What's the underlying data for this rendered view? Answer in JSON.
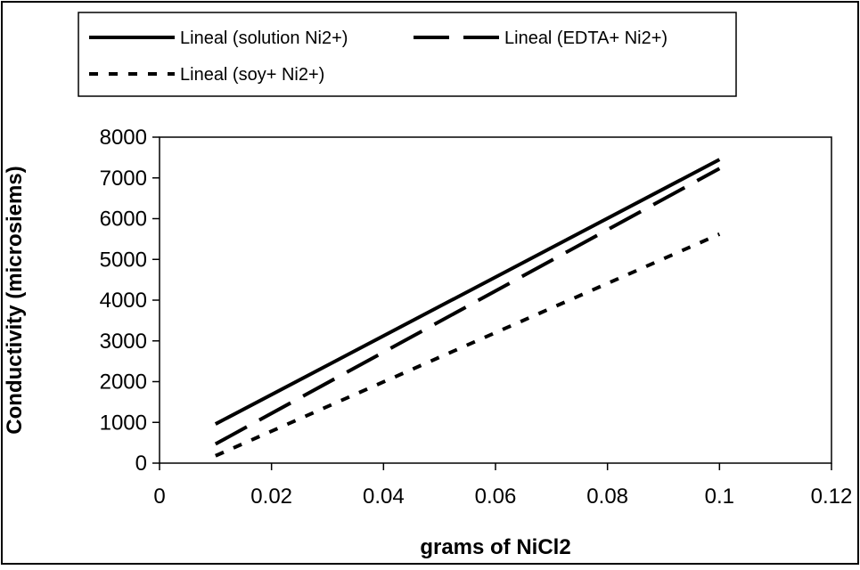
{
  "chart_data": {
    "type": "line",
    "title": "",
    "xlabel": "grams of NiCl2",
    "ylabel": "Conductivity (microsiems)",
    "xlim": [
      0,
      0.12
    ],
    "ylim": [
      0,
      8000
    ],
    "x_ticks": [
      0,
      0.02,
      0.04,
      0.06,
      0.08,
      0.1,
      0.12
    ],
    "x_tick_labels": [
      "0",
      "0.02",
      "0.04",
      "0.06",
      "0.08",
      "0.1",
      "0.12"
    ],
    "y_ticks": [
      0,
      1000,
      2000,
      3000,
      4000,
      5000,
      6000,
      7000,
      8000
    ],
    "y_tick_labels": [
      "0",
      "1000",
      "2000",
      "3000",
      "4000",
      "5000",
      "6000",
      "7000",
      "8000"
    ],
    "grid": false,
    "legend_position": "top",
    "series": [
      {
        "name": "Lineal (solution Ni2+)",
        "style": "solid",
        "x": [
          0.01,
          0.1
        ],
        "y": [
          960,
          7450
        ]
      },
      {
        "name": "Lineal (EDTA+ Ni2+)",
        "style": "dashed",
        "x": [
          0.01,
          0.1
        ],
        "y": [
          470,
          7230
        ]
      },
      {
        "name": "Lineal (soy+ Ni2+)",
        "style": "dotted",
        "x": [
          0.01,
          0.1
        ],
        "y": [
          180,
          5620
        ]
      }
    ]
  }
}
